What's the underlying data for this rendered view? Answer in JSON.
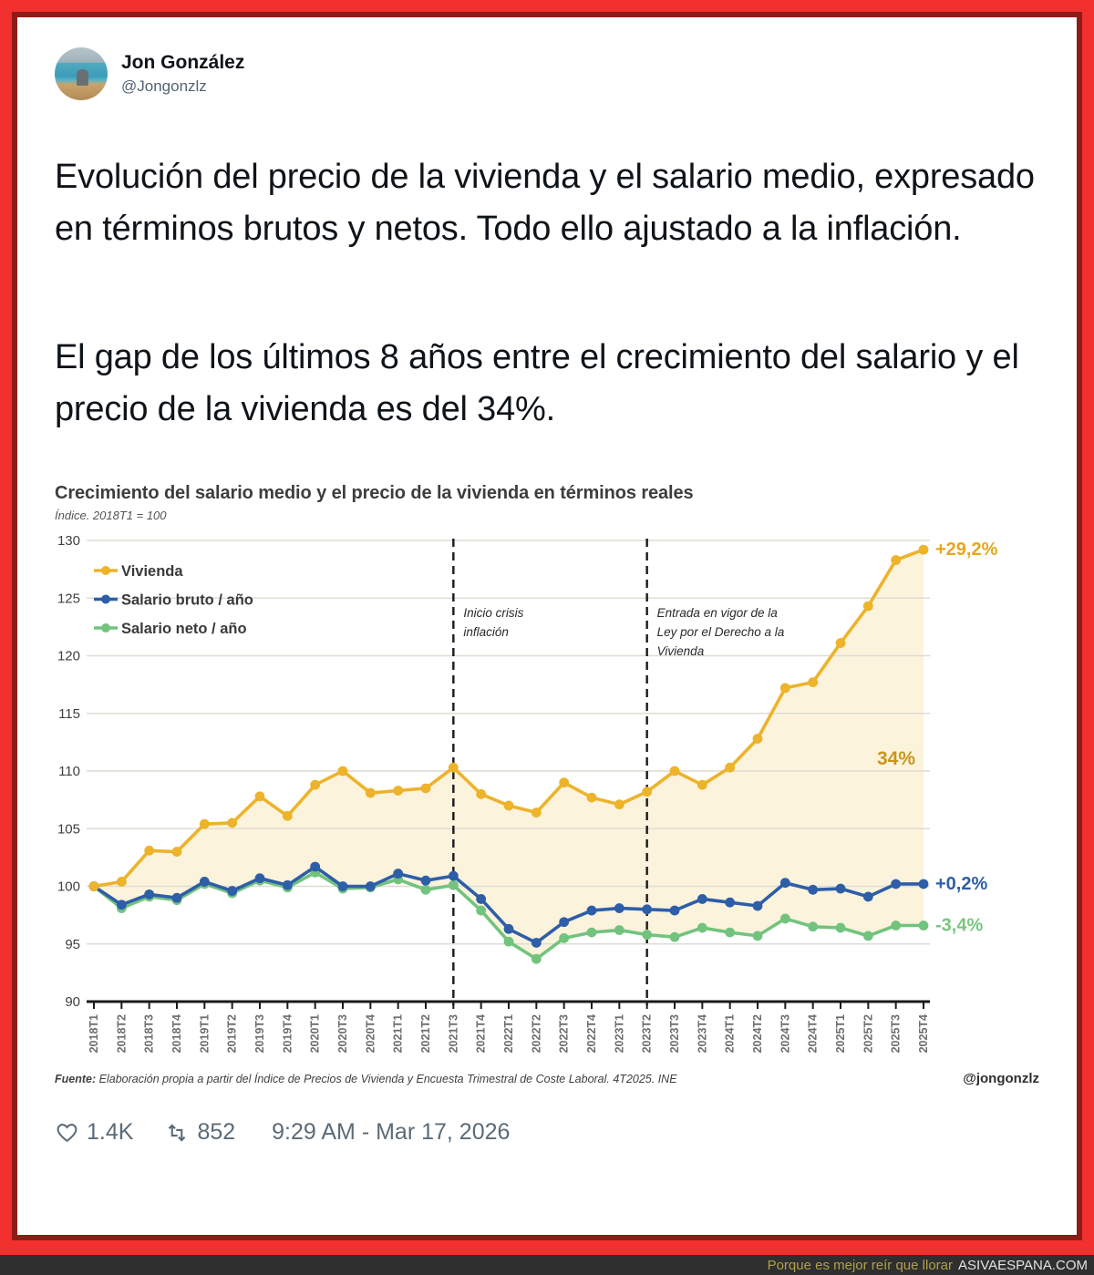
{
  "header": {
    "name": "Jon González",
    "handle": "@Jongonzlz"
  },
  "tweet": {
    "paragraph1": "Evolución del precio de la vivienda y el salario medio, expresado en términos brutos y netos. Todo ello ajustado a la inflación.",
    "paragraph2": "El gap de los últimos 8 años entre el crecimiento del salario y el precio de la vivienda es del 34%."
  },
  "chart": {
    "title": "Crecimiento del salario medio y el precio de la vivienda en términos reales",
    "subtitle": "Índice. 2018T1 = 100",
    "source_label": "Fuente:",
    "source_text": "Elaboración propia a partir del Índice de Precios de Vivienda y Encuesta Trimestral de Coste Laboral. 4T2025. INE",
    "credit": "@jongonzlz"
  },
  "chart_data": {
    "type": "line",
    "categories": [
      "2018T1",
      "2018T2",
      "2018T3",
      "2018T4",
      "2019T1",
      "2019T2",
      "2019T3",
      "2019T4",
      "2020T1",
      "2020T3",
      "2020T4",
      "2021T1",
      "2021T2",
      "2021T3",
      "2021T4",
      "2022T1",
      "2022T2",
      "2022T3",
      "2022T4",
      "2023T1",
      "2023T2",
      "2023T3",
      "2023T4",
      "2024T1",
      "2024T2",
      "2024T3",
      "2024T4",
      "2025T1",
      "2025T2",
      "2025T3",
      "2025T4"
    ],
    "ylim": [
      90,
      130
    ],
    "yticks": [
      95,
      100,
      105,
      110,
      115,
      120,
      125,
      130
    ],
    "grid": true,
    "legend_position": "top-left",
    "series": [
      {
        "name": "Vivienda",
        "color": "#EDB32A",
        "end_label": "+29,2%",
        "end_label_color": "#E7A61E",
        "values": [
          100,
          100.4,
          103.1,
          103,
          105.4,
          105.5,
          107.8,
          106.1,
          108.8,
          110,
          108.1,
          108.3,
          108.5,
          110.3,
          108,
          107,
          106.4,
          109,
          107.7,
          107.1,
          108.2,
          110,
          108.8,
          110.3,
          112.8,
          117.2,
          117.7,
          121.1,
          124.3,
          128.3,
          129.2
        ]
      },
      {
        "name": "Salario bruto / año",
        "color": "#2E5EA8",
        "end_label": "+0,2%",
        "end_label_color": "#2E5EA8",
        "values": [
          100,
          98.4,
          99.3,
          99,
          100.4,
          99.6,
          100.7,
          100.1,
          101.7,
          100,
          100,
          101.1,
          100.5,
          100.9,
          98.9,
          96.3,
          95.1,
          96.9,
          97.9,
          98.1,
          98,
          97.9,
          98.9,
          98.6,
          98.3,
          100.3,
          99.7,
          99.8,
          99.1,
          100.2,
          100.2
        ]
      },
      {
        "name": "Salario neto / año",
        "color": "#72C37E",
        "end_label": "-3,4%",
        "end_label_color": "#79C57F",
        "values": [
          100,
          98.1,
          99.1,
          98.8,
          100.2,
          99.4,
          100.5,
          99.9,
          101.2,
          99.8,
          99.9,
          100.6,
          99.7,
          100.1,
          97.9,
          95.2,
          93.7,
          95.5,
          96,
          96.2,
          95.8,
          95.6,
          96.4,
          96,
          95.7,
          97.2,
          96.5,
          96.4,
          95.7,
          96.6,
          96.6
        ]
      }
    ],
    "fill_between": {
      "upper": 0,
      "lower": 2,
      "color": "#FBF3DC",
      "label": "34%",
      "label_color": "#C9961B"
    },
    "annotations": [
      {
        "x": "2021T3",
        "lines": [
          "Inicio crisis",
          "inflación"
        ]
      },
      {
        "x": "2023T2",
        "lines": [
          "Entrada en vigor de la",
          "Ley por el Derecho a la",
          "Vivienda"
        ]
      }
    ]
  },
  "footer": {
    "likes": "1.4K",
    "retweets": "852",
    "timestamp": "9:29 AM - Mar 17, 2026"
  },
  "watermark": {
    "text": "Porque es mejor reír que llorar",
    "site": "ASIVAESPANA.COM"
  }
}
